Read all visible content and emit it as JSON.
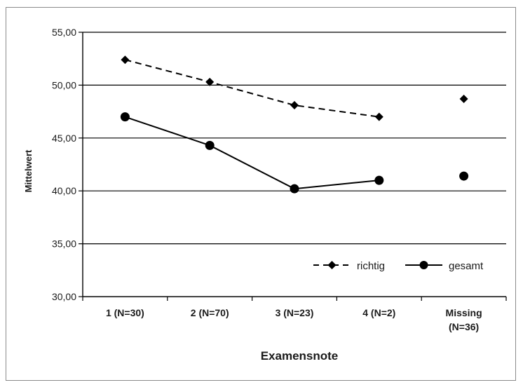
{
  "chart_data": {
    "type": "line",
    "categories": [
      "1 (N=30)",
      "2 (N=70)",
      "3 (N=23)",
      "4 (N=2)",
      "Missing (N=36)"
    ],
    "category_lines": [
      [
        "1 (N=30)"
      ],
      [
        "2 (N=70)"
      ],
      [
        "3 (N=23)"
      ],
      [
        "4 (N=2)"
      ],
      [
        "Missing",
        "(N=36)"
      ]
    ],
    "series": [
      {
        "name": "richtig",
        "values": [
          52.4,
          50.3,
          48.1,
          47.0,
          48.7
        ],
        "line_style": "dashed",
        "marker": "diamond",
        "connected_through": 4
      },
      {
        "name": "gesamt",
        "values": [
          47.0,
          44.3,
          40.2,
          41.0,
          41.4
        ],
        "line_style": "solid",
        "marker": "circle",
        "connected_through": 4
      }
    ],
    "xlabel": "Examensnote",
    "ylabel": "Mittelwert",
    "ylim": [
      30,
      55
    ],
    "yticks": [
      30,
      35,
      40,
      45,
      50,
      55
    ],
    "ytick_labels": [
      "30,00",
      "35,00",
      "40,00",
      "45,00",
      "50,00",
      "55,00"
    ],
    "grid": true,
    "legend_position": "bottom-right",
    "colors": {
      "series": "#000000",
      "grid": "#000000",
      "text": "#1a1a1a",
      "border": "#8a8a8a"
    }
  }
}
